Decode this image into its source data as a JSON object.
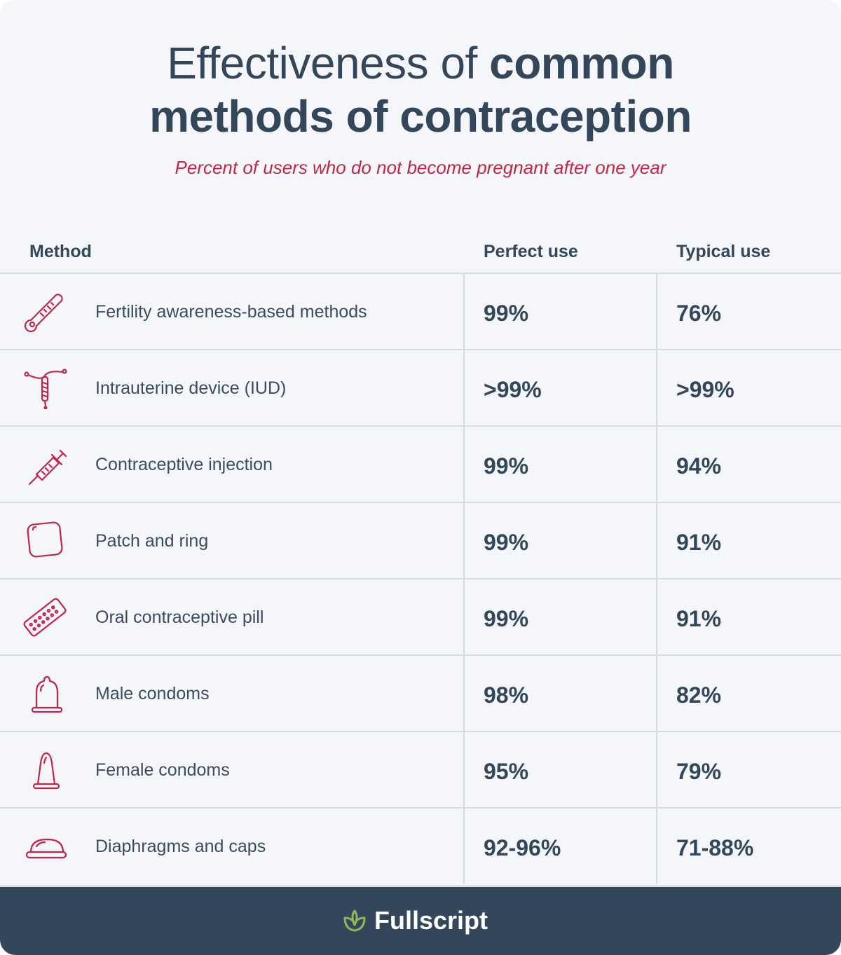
{
  "title": {
    "light": "Effectiveness of ",
    "bold_line1": "common",
    "bold_line2": "methods of contraception"
  },
  "subtitle": "Percent of users who do not become pregnant after one year",
  "columns": {
    "method": "Method",
    "perfect": "Perfect use",
    "typical": "Typical use"
  },
  "rows": [
    {
      "icon": "thermometer-icon",
      "name": "Fertility awareness-based methods",
      "perfect": "99%",
      "typical": "76%"
    },
    {
      "icon": "iud-icon",
      "name": "Intrauterine device (IUD)",
      "perfect": ">99%",
      "typical": ">99%"
    },
    {
      "icon": "syringe-icon",
      "name": "Contraceptive injection",
      "perfect": "99%",
      "typical": "94%"
    },
    {
      "icon": "patch-icon",
      "name": "Patch and ring",
      "perfect": "99%",
      "typical": "91%"
    },
    {
      "icon": "pill-pack-icon",
      "name": "Oral contraceptive pill",
      "perfect": "99%",
      "typical": "91%"
    },
    {
      "icon": "male-condom-icon",
      "name": "Male condoms",
      "perfect": "98%",
      "typical": "82%"
    },
    {
      "icon": "female-condom-icon",
      "name": "Female condoms",
      "perfect": "95%",
      "typical": "79%"
    },
    {
      "icon": "diaphragm-icon",
      "name": "Diaphragms and caps",
      "perfect": "92-96%",
      "typical": "71-88%"
    }
  ],
  "footer": {
    "brand": "Fullscript",
    "logo_icon": "leaf-logo-icon"
  },
  "colors": {
    "text": "#34465a",
    "accent": "#c4244a",
    "background": "#f4f6fa",
    "footer": "#34465a",
    "logo_green": "#8cb85a"
  }
}
